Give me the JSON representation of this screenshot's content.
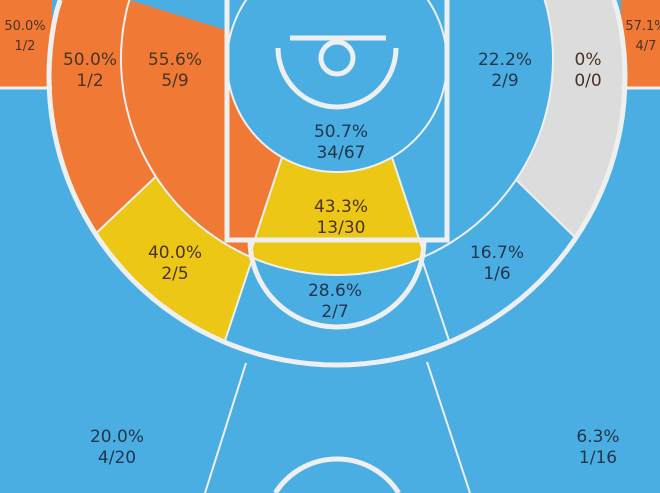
{
  "chart_data": {
    "type": "heatmap",
    "palette": {
      "court": "#4aaee3",
      "lines": "#eef0f0",
      "hot": "#f07a35",
      "average": "#ecc715",
      "cold": "#4aaee3",
      "none": "#dcdcdc"
    },
    "zones": [
      {
        "pct": "50.0%",
        "made_attempts": "1/2",
        "color": "#f07a35"
      },
      {
        "pct": "50.0%",
        "made_attempts": "1/2",
        "color": "#f07a35"
      },
      {
        "pct": "55.6%",
        "made_attempts": "5/9",
        "color": "#f07a35"
      },
      {
        "pct": "50.7%",
        "made_attempts": "34/67",
        "color": "#4aaee3"
      },
      {
        "pct": "22.2%",
        "made_attempts": "2/9",
        "color": "#4aaee3"
      },
      {
        "pct": "0%",
        "made_attempts": "0/0",
        "color": "#dcdcdc"
      },
      {
        "pct": "57.1%",
        "made_attempts": "4/7",
        "color": "#f07a35"
      },
      {
        "pct": "43.3%",
        "made_attempts": "13/30",
        "color": "#ecc715"
      },
      {
        "pct": "40.0%",
        "made_attempts": "2/5",
        "color": "#ecc715"
      },
      {
        "pct": "16.7%",
        "made_attempts": "1/6",
        "color": "#4aaee3"
      },
      {
        "pct": "28.6%",
        "made_attempts": "2/7",
        "color": "#4aaee3"
      },
      {
        "pct": "20.0%",
        "made_attempts": "4/20",
        "color": "#4aaee3"
      },
      {
        "pct": "6.3%",
        "made_attempts": "1/16",
        "color": "#4aaee3"
      }
    ]
  }
}
